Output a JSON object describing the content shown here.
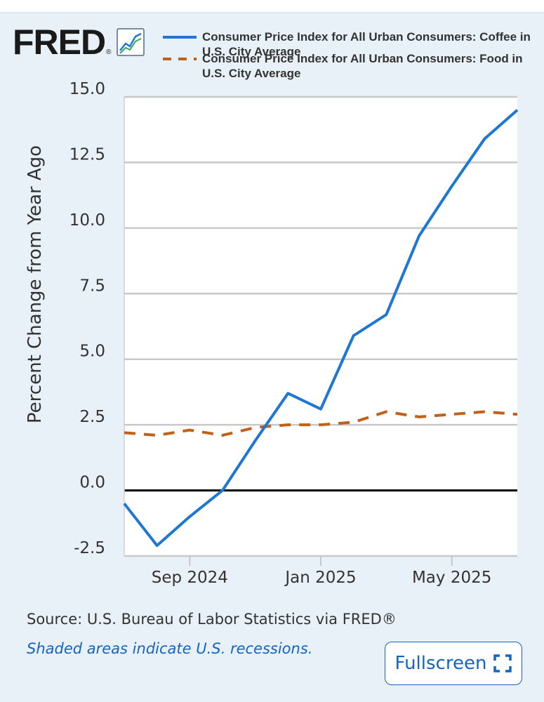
{
  "logo": {
    "text": "FRED",
    "mark": "®",
    "icon": "line-chart-icon"
  },
  "colors": {
    "coffee": "#1f77d4",
    "food": "#c0601a",
    "grid": "#c8c8c8",
    "zero": "#000000",
    "accent": "#1565c0",
    "background": "#e8f0f8"
  },
  "footer": {
    "source": "Source: U.S. Bureau of Labor Statistics via FRED®",
    "note": "Shaded areas indicate U.S. recessions.",
    "fullscreen_label": "Fullscreen",
    "fullscreen_icon": "expand-icon"
  },
  "chart_data": {
    "type": "line",
    "title": "",
    "xlabel": "",
    "ylabel": "Percent Change from Year Ago",
    "ylim": [
      -2.5,
      15.0
    ],
    "yticks": [
      -2.5,
      0.0,
      2.5,
      5.0,
      7.5,
      10.0,
      12.5,
      15.0
    ],
    "ytick_labels": [
      "-2.5",
      "0.0",
      "2.5",
      "5.0",
      "7.5",
      "10.0",
      "12.5",
      "15.0"
    ],
    "xlim": [
      "2024-07",
      "2025-07"
    ],
    "x": [
      "2024-07",
      "2024-08",
      "2024-09",
      "2024-10",
      "2024-11",
      "2024-12",
      "2025-01",
      "2025-02",
      "2025-03",
      "2025-04",
      "2025-05",
      "2025-06",
      "2025-07"
    ],
    "xticks": [
      "2024-09",
      "2025-01",
      "2025-05"
    ],
    "xtick_labels": [
      "Sep 2024",
      "Jan 2025",
      "May 2025"
    ],
    "grid": true,
    "legend": "top",
    "series": [
      {
        "name": "Consumer Price Index for All Urban Consumers: Coffee in U.S. City Average",
        "style": "solid",
        "values": [
          -0.5,
          -2.1,
          -1.0,
          0.0,
          1.9,
          3.7,
          3.1,
          5.9,
          6.7,
          9.7,
          11.6,
          13.4,
          14.5
        ]
      },
      {
        "name": "Consumer Price Index for All Urban Consumers: Food in U.S. City Average",
        "style": "dashed",
        "values": [
          2.2,
          2.1,
          2.3,
          2.1,
          2.4,
          2.5,
          2.5,
          2.6,
          3.0,
          2.8,
          2.9,
          3.0,
          2.9
        ]
      }
    ]
  }
}
